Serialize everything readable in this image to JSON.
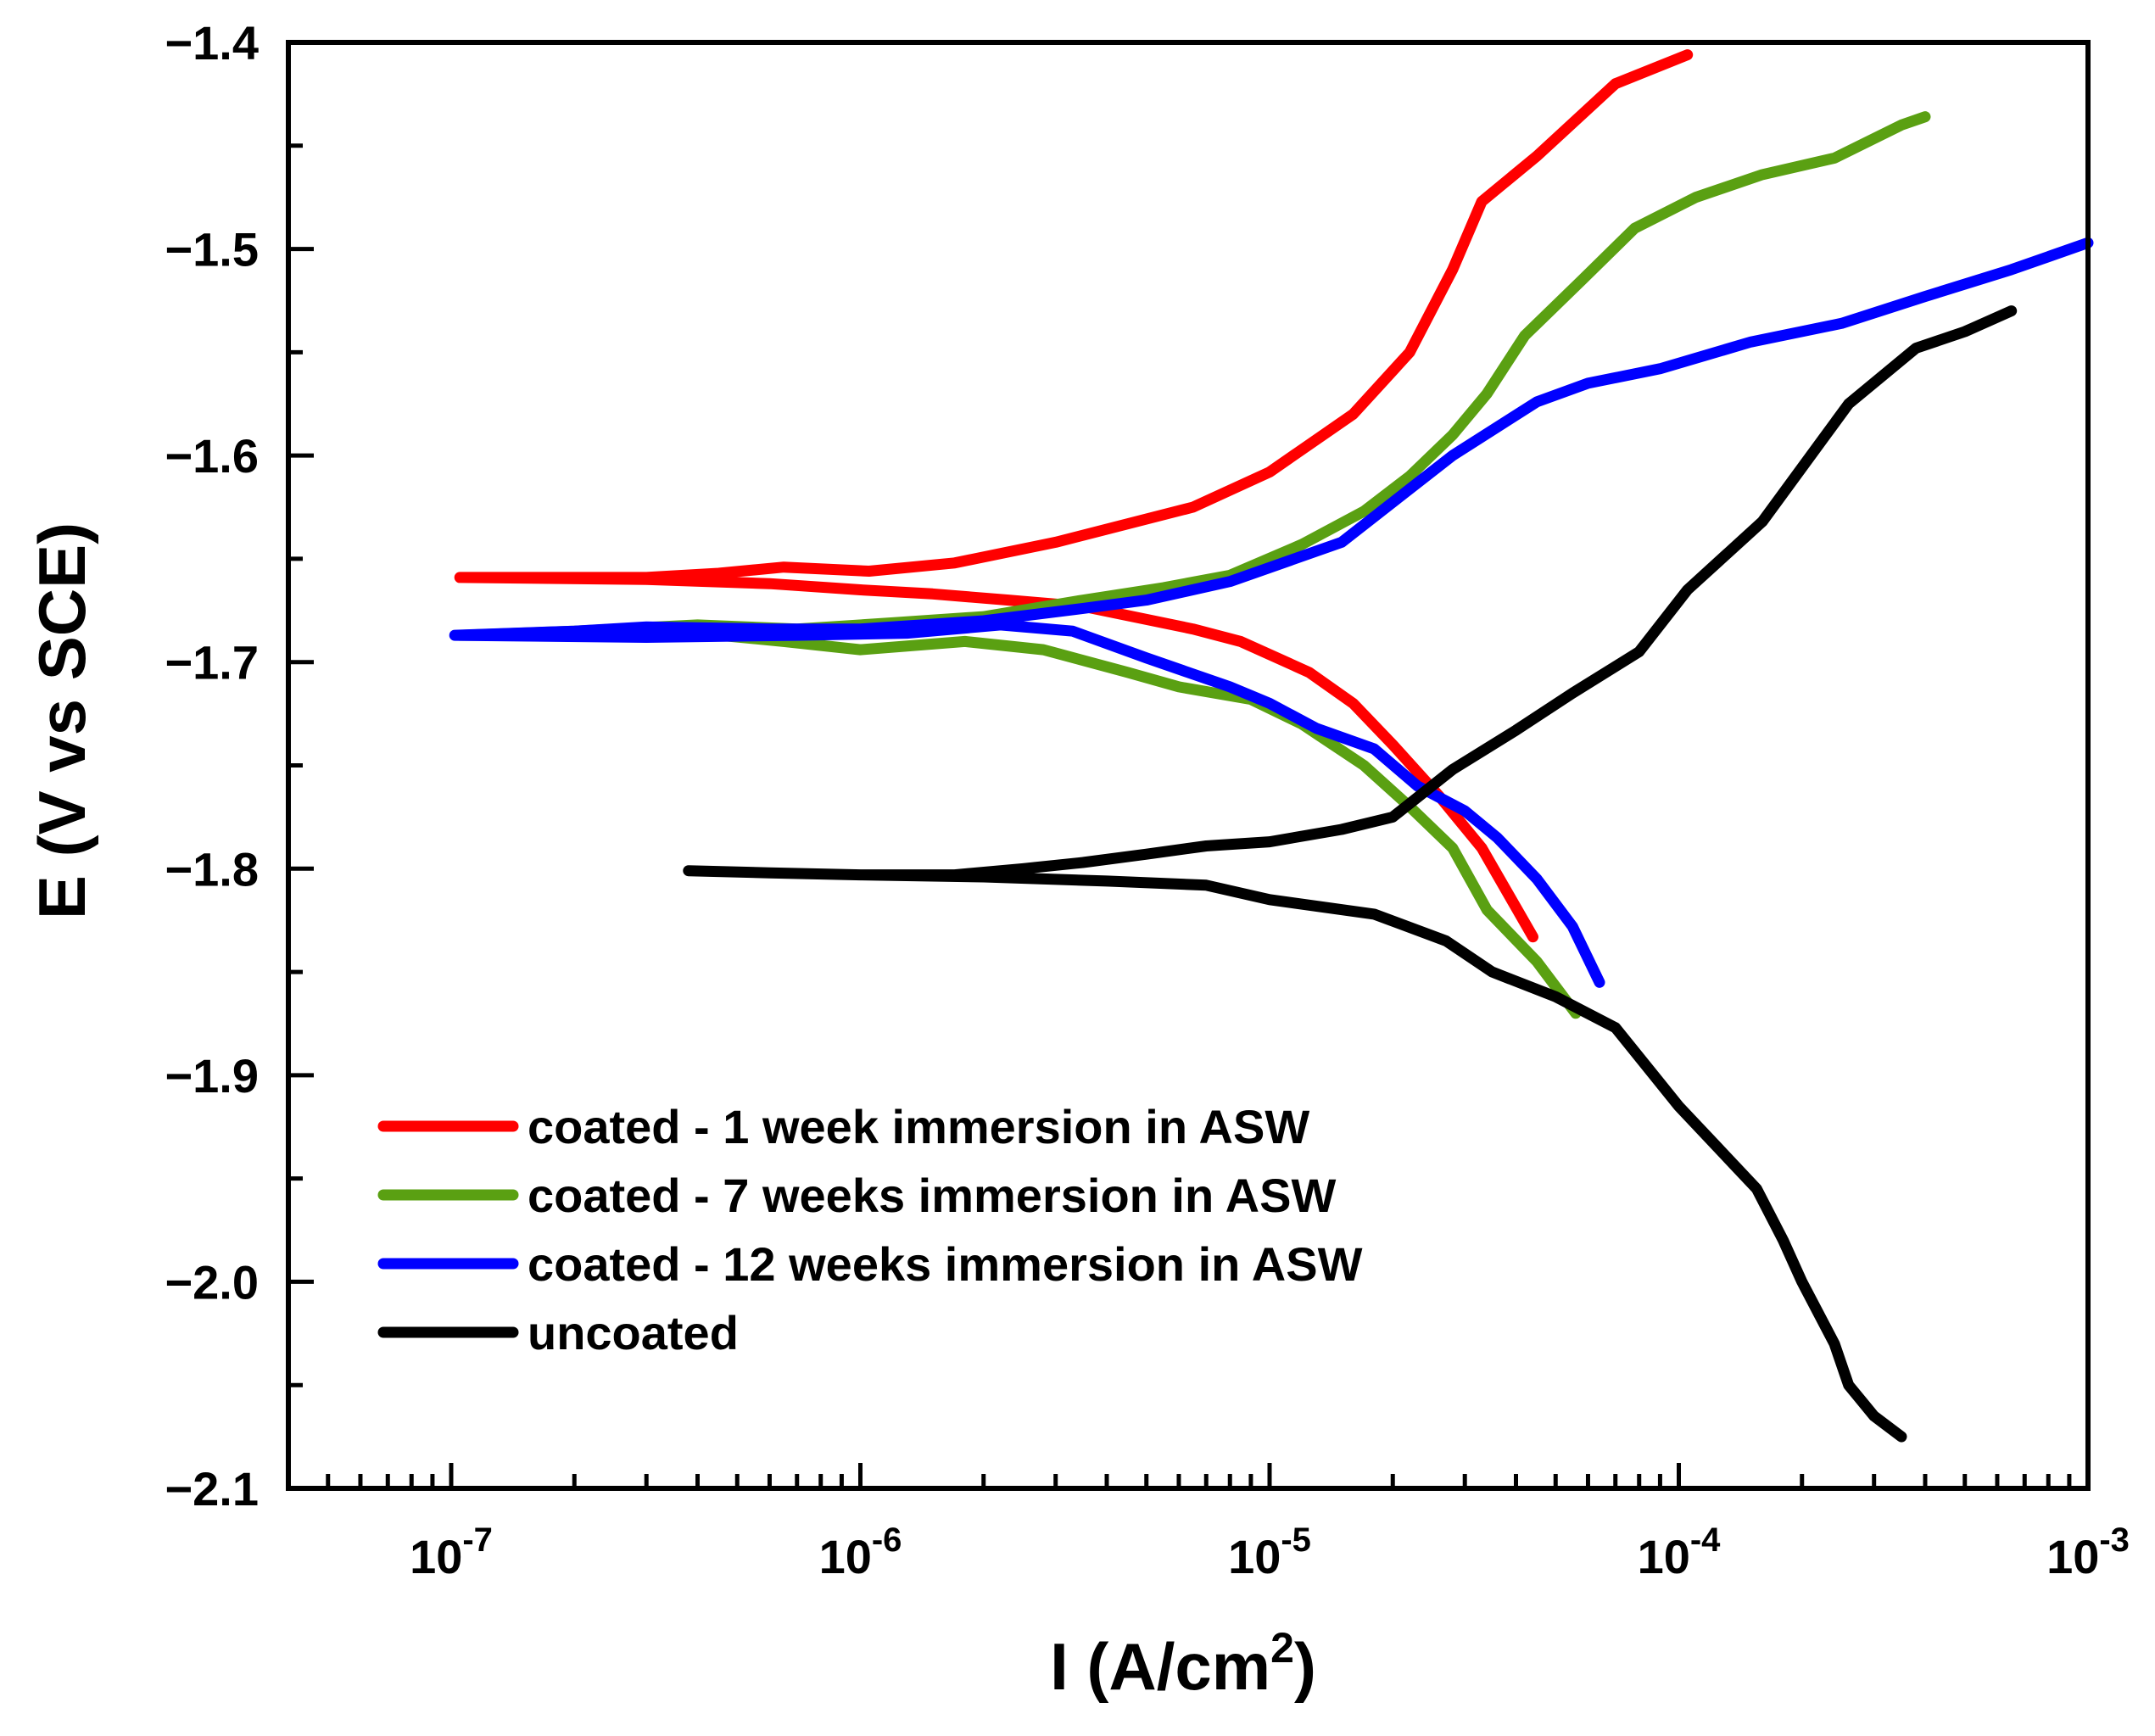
{
  "chart_data": {
    "type": "line",
    "title": "",
    "xlabel": {
      "base": "I (A/cm",
      "sup": "2",
      "close": ")"
    },
    "ylabel": "E (V vs SCE)",
    "xscale": "log",
    "xlim": [
      4e-08,
      0.001
    ],
    "ylim": [
      -2.1,
      -1.4
    ],
    "grid": false,
    "legend_position": "lower-left",
    "x_ticks": [
      {
        "value": 1e-07,
        "base": "10",
        "exp": "-7"
      },
      {
        "value": 1e-06,
        "base": "10",
        "exp": "-6"
      },
      {
        "value": 1e-05,
        "base": "10",
        "exp": "-5"
      },
      {
        "value": 0.0001,
        "base": "10",
        "exp": "-4"
      },
      {
        "value": 0.001,
        "base": "10",
        "exp": "-3"
      }
    ],
    "y_ticks": [
      {
        "value": -1.4,
        "label": "−1.4"
      },
      {
        "value": -1.5,
        "label": "−1.5"
      },
      {
        "value": -1.6,
        "label": "−1.6"
      },
      {
        "value": -1.7,
        "label": "−1.7"
      },
      {
        "value": -1.8,
        "label": "−1.8"
      },
      {
        "value": -1.9,
        "label": "−1.9"
      },
      {
        "value": -2.0,
        "label": "−2.0"
      },
      {
        "value": -2.1,
        "label": "−2.1"
      }
    ],
    "series": [
      {
        "name": "coated - 1 week immersion in ASW",
        "color": "#ff0000",
        "points": [
          [
            4.4e-05,
            -1.833
          ],
          [
            3.3e-05,
            -1.79
          ],
          [
            2.6e-05,
            -1.765
          ],
          [
            2e-05,
            -1.74
          ],
          [
            1.6e-05,
            -1.72
          ],
          [
            1.25e-05,
            -1.705
          ],
          [
            8.5e-06,
            -1.69
          ],
          [
            6.5e-06,
            -1.684
          ],
          [
            3.5e-06,
            -1.673
          ],
          [
            2.3e-06,
            -1.67
          ],
          [
            1.5e-06,
            -1.667
          ],
          [
            1e-06,
            -1.665
          ],
          [
            6e-07,
            -1.662
          ],
          [
            3e-07,
            -1.66
          ],
          [
            1.05e-07,
            -1.659
          ],
          [
            1.05e-07,
            -1.659
          ],
          [
            3e-07,
            -1.659
          ],
          [
            4.5e-07,
            -1.657
          ],
          [
            6.5e-07,
            -1.654
          ],
          [
            1.05e-06,
            -1.656
          ],
          [
            1.7e-06,
            -1.652
          ],
          [
            3e-06,
            -1.642
          ],
          [
            6.5e-06,
            -1.625
          ],
          [
            1e-05,
            -1.608
          ],
          [
            1.6e-05,
            -1.58
          ],
          [
            2.2e-05,
            -1.55
          ],
          [
            2.8e-05,
            -1.51
          ],
          [
            3.3e-05,
            -1.477
          ],
          [
            4.5e-05,
            -1.455
          ],
          [
            7e-05,
            -1.42
          ],
          [
            0.000105,
            -1.406
          ]
        ]
      },
      {
        "name": "coated - 7 weeks immersion in ASW",
        "color": "#5aa012",
        "points": [
          [
            5.6e-05,
            -1.87
          ],
          [
            4.5e-05,
            -1.845
          ],
          [
            3.4e-05,
            -1.82
          ],
          [
            2.8e-05,
            -1.79
          ],
          [
            2.2e-05,
            -1.77
          ],
          [
            1.7e-05,
            -1.75
          ],
          [
            1.2e-05,
            -1.73
          ],
          [
            9e-06,
            -1.718
          ],
          [
            6e-06,
            -1.712
          ],
          [
            4.5e-06,
            -1.705
          ],
          [
            2.8e-06,
            -1.694
          ],
          [
            1.8e-06,
            -1.69
          ],
          [
            1e-06,
            -1.694
          ],
          [
            6.5e-07,
            -1.69
          ],
          [
            4e-07,
            -1.686
          ],
          [
            2e-07,
            -1.687
          ],
          [
            1.05e-07,
            -1.687
          ],
          [
            1.05e-07,
            -1.687
          ],
          [
            2e-07,
            -1.685
          ],
          [
            4e-07,
            -1.682
          ],
          [
            7e-07,
            -1.684
          ],
          [
            1.2e-06,
            -1.681
          ],
          [
            2e-06,
            -1.678
          ],
          [
            3.5e-06,
            -1.67
          ],
          [
            5.5e-06,
            -1.664
          ],
          [
            8e-06,
            -1.658
          ],
          [
            1.2e-05,
            -1.643
          ],
          [
            1.7e-05,
            -1.627
          ],
          [
            2.2e-05,
            -1.61
          ],
          [
            2.8e-05,
            -1.59
          ],
          [
            3.4e-05,
            -1.57
          ],
          [
            4.2e-05,
            -1.542
          ],
          [
            5.8e-05,
            -1.515
          ],
          [
            7.8e-05,
            -1.49
          ],
          [
            0.00011,
            -1.475
          ],
          [
            0.00016,
            -1.464
          ],
          [
            0.00024,
            -1.456
          ],
          [
            0.00035,
            -1.44
          ],
          [
            0.0004,
            -1.436
          ]
        ]
      },
      {
        "name": "coated - 12 weeks immersion in ASW",
        "color": "#0000ff",
        "points": [
          [
            6.4e-05,
            -1.855
          ],
          [
            5.5e-05,
            -1.828
          ],
          [
            4.5e-05,
            -1.805
          ],
          [
            3.6e-05,
            -1.785
          ],
          [
            3e-05,
            -1.772
          ],
          [
            2.3e-05,
            -1.76
          ],
          [
            1.8e-05,
            -1.742
          ],
          [
            1.3e-05,
            -1.732
          ],
          [
            1e-05,
            -1.72
          ],
          [
            8e-06,
            -1.712
          ],
          [
            5e-06,
            -1.698
          ],
          [
            3.3e-06,
            -1.685
          ],
          [
            2.2e-06,
            -1.682
          ],
          [
            1.3e-06,
            -1.686
          ],
          [
            7e-07,
            -1.687
          ],
          [
            3e-07,
            -1.688
          ],
          [
            1.02e-07,
            -1.687
          ],
          [
            1.02e-07,
            -1.687
          ],
          [
            2e-07,
            -1.685
          ],
          [
            3e-07,
            -1.683
          ],
          [
            6e-07,
            -1.684
          ],
          [
            1e-06,
            -1.684
          ],
          [
            2e-06,
            -1.68
          ],
          [
            3.5e-06,
            -1.674
          ],
          [
            5e-06,
            -1.67
          ],
          [
            8e-06,
            -1.661
          ],
          [
            1.5e-05,
            -1.642
          ],
          [
            2.8e-05,
            -1.6
          ],
          [
            4.5e-05,
            -1.574
          ],
          [
            6e-05,
            -1.565
          ],
          [
            9e-05,
            -1.558
          ],
          [
            0.00015,
            -1.545
          ],
          [
            0.00025,
            -1.536
          ],
          [
            0.0004,
            -1.523
          ],
          [
            0.00065,
            -1.51
          ],
          [
            0.001,
            -1.497
          ]
        ]
      },
      {
        "name": "uncoated",
        "color": "#000000",
        "points": [
          [
            0.00035,
            -2.075
          ],
          [
            0.0003,
            -2.065
          ],
          [
            0.00026,
            -2.05
          ],
          [
            0.00024,
            -2.03
          ],
          [
            0.0002,
            -2.0
          ],
          [
            0.00018,
            -1.98
          ],
          [
            0.000155,
            -1.955
          ],
          [
            0.0001,
            -1.915
          ],
          [
            7e-05,
            -1.877
          ],
          [
            5e-05,
            -1.862
          ],
          [
            3.5e-05,
            -1.85
          ],
          [
            2.7e-05,
            -1.835
          ],
          [
            1.8e-05,
            -1.822
          ],
          [
            1e-05,
            -1.815
          ],
          [
            7e-06,
            -1.808
          ],
          [
            4e-06,
            -1.806
          ],
          [
            2e-06,
            -1.804
          ],
          [
            1e-06,
            -1.803
          ],
          [
            6e-07,
            -1.802
          ],
          [
            3.8e-07,
            -1.801
          ],
          [
            3.8e-07,
            -1.801
          ],
          [
            6e-07,
            -1.802
          ],
          [
            1e-06,
            -1.803
          ],
          [
            1.7e-06,
            -1.803
          ],
          [
            2.5e-06,
            -1.8
          ],
          [
            3.5e-06,
            -1.797
          ],
          [
            5e-06,
            -1.793
          ],
          [
            7e-06,
            -1.789
          ],
          [
            1e-05,
            -1.787
          ],
          [
            1.5e-05,
            -1.781
          ],
          [
            2e-05,
            -1.775
          ],
          [
            2.8e-05,
            -1.752
          ],
          [
            4e-05,
            -1.733
          ],
          [
            5.5e-05,
            -1.715
          ],
          [
            8e-05,
            -1.695
          ],
          [
            0.000105,
            -1.665
          ],
          [
            0.00016,
            -1.632
          ],
          [
            0.00026,
            -1.575
          ],
          [
            0.00038,
            -1.548
          ],
          [
            0.0005,
            -1.54
          ],
          [
            0.00065,
            -1.53
          ]
        ]
      }
    ]
  }
}
